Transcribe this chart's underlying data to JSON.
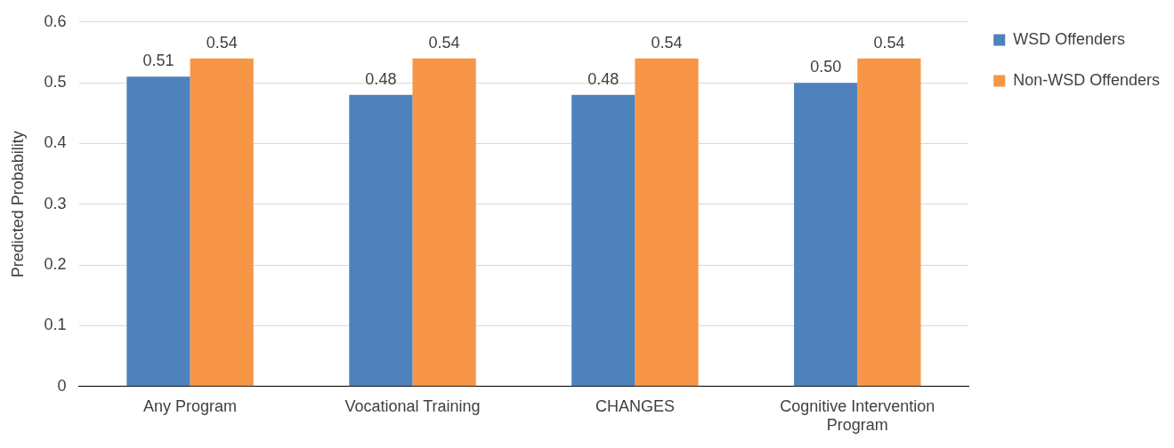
{
  "chart_data": {
    "type": "bar",
    "ylabel": "Predicted Probability",
    "categories": [
      "Any Program",
      "Vocational Training",
      "CHANGES",
      "Cognitive Intervention Program"
    ],
    "series": [
      {
        "name": "WSD Offenders",
        "color": "#4f81bd",
        "values": [
          0.51,
          0.48,
          0.48,
          0.5
        ],
        "value_labels": [
          "0.51",
          "0.48",
          "0.48",
          "0.50"
        ]
      },
      {
        "name": "Non-WSD Offenders",
        "color": "#f79646",
        "values": [
          0.54,
          0.54,
          0.54,
          0.54
        ],
        "value_labels": [
          "0.54",
          "0.54",
          "0.54",
          "0.54"
        ]
      }
    ],
    "ylim": [
      0,
      0.6
    ],
    "yticks": [
      0,
      0.1,
      0.2,
      0.3,
      0.4,
      0.5,
      0.6
    ],
    "grid": "y",
    "legend": "right"
  }
}
